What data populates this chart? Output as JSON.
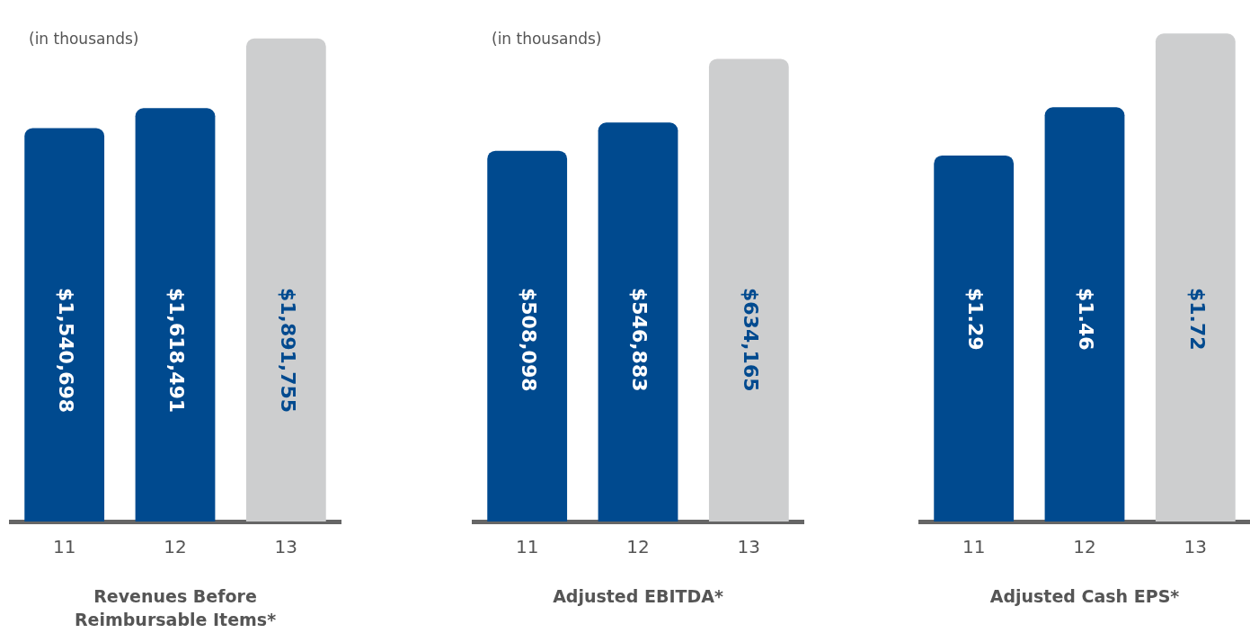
{
  "chart_data": [
    {
      "type": "bar",
      "title": "Revenues Before Reimbursable Items*",
      "annotations": [
        "(in thousands)"
      ],
      "categories": [
        "11",
        "12",
        "13"
      ],
      "values": [
        1540698,
        1618491,
        1891755
      ],
      "value_labels": [
        "$1,540,698",
        "$1,618,491",
        "$1,891,755"
      ],
      "colors": [
        "#004a8f",
        "#004a8f",
        "#cdcecf"
      ],
      "grid": false,
      "legend": false,
      "tick_labels": "x"
    },
    {
      "type": "bar",
      "title": "Adjusted EBITDA*",
      "annotations": [
        "(in thousands)"
      ],
      "categories": [
        "11",
        "12",
        "13"
      ],
      "values": [
        508098,
        546883,
        634165
      ],
      "value_labels": [
        "$508,098",
        "$546,883",
        "$634,165"
      ],
      "colors": [
        "#004a8f",
        "#004a8f",
        "#cdcecf"
      ],
      "grid": false,
      "legend": false,
      "tick_labels": "x"
    },
    {
      "type": "bar",
      "title": "Adjusted Cash EPS*",
      "categories": [
        "11",
        "12",
        "13"
      ],
      "values": [
        1.29,
        1.46,
        1.72
      ],
      "value_labels": [
        "$1.29",
        "$1.46",
        "$1.72"
      ],
      "colors": [
        "#004a8f",
        "#004a8f",
        "#cdcecf"
      ],
      "grid": false,
      "legend": false,
      "tick_labels": "x"
    }
  ]
}
